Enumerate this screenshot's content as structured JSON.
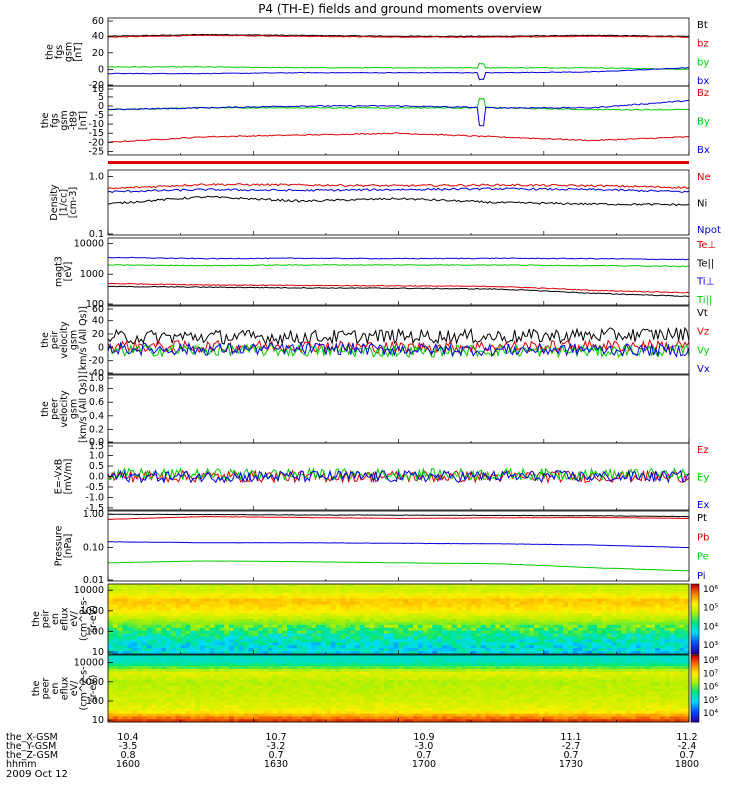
{
  "title": "P4 (TH-E) fields and ground moments overview",
  "colors": {
    "black": "#000000",
    "red": "#e00000",
    "green": "#00cc00",
    "blue": "#0000dd"
  },
  "colorbar_ticks": [
    {
      "panel": 10,
      "ticks": [
        "10⁶",
        "10⁵",
        "10⁴",
        "10³"
      ]
    },
    {
      "panel": 11,
      "ticks": [
        "10⁸",
        "10⁷",
        "10⁶",
        "10⁵",
        "10⁴"
      ]
    }
  ],
  "chart_data": [
    {
      "type": "line",
      "panel": 0,
      "ylabel": [
        "the",
        "fgs",
        "gsm",
        "[nT]"
      ],
      "yticks": [
        "60",
        "40",
        "20",
        "0",
        "-20"
      ],
      "ylim": [
        -20,
        62
      ],
      "log": false,
      "series": [
        {
          "name": "Bt",
          "color": "black",
          "values": [
            40,
            42,
            41,
            40,
            40,
            41,
            40
          ]
        },
        {
          "name": "bz",
          "color": "red",
          "values": [
            39,
            41,
            40,
            39,
            39,
            40,
            39
          ]
        },
        {
          "name": "by",
          "color": "green",
          "values": [
            3,
            3,
            2,
            2,
            2,
            2,
            0
          ]
        },
        {
          "name": "bx",
          "color": "blue",
          "values": [
            -5,
            -5,
            -4,
            -4,
            -4,
            -3,
            2
          ]
        }
      ]
    },
    {
      "type": "line",
      "panel": 1,
      "ylabel": [
        "the",
        "fgs",
        "gsm",
        "-t89",
        "[nT]"
      ],
      "yticks": [
        "10",
        "5",
        "0",
        "-5",
        "-10",
        "-15",
        "-20",
        "-25"
      ],
      "ylim": [
        -27,
        11
      ],
      "log": false,
      "series": [
        {
          "name": "Bz",
          "color": "red",
          "values": [
            -20,
            -17,
            -16,
            -15,
            -17,
            -19,
            -17
          ]
        },
        {
          "name": "By",
          "color": "green",
          "values": [
            -2,
            -1,
            -1,
            -1,
            -1,
            -2,
            -2
          ]
        },
        {
          "name": "Bx",
          "color": "blue",
          "values": [
            -2,
            -1,
            0,
            0,
            -1,
            -1,
            3
          ]
        }
      ]
    },
    {
      "type": "line",
      "panel": 2,
      "ylabel": [],
      "yticks": [],
      "ylim": [
        0,
        1
      ],
      "log": false,
      "series": [
        {
          "name": "",
          "color": "red",
          "values": [
            0.5,
            0.5
          ]
        }
      ]
    },
    {
      "type": "line",
      "panel": 3,
      "ylabel": [
        "Density",
        "[1/cc]",
        "[cm-3]"
      ],
      "yticks": [
        "1.0",
        "0.1"
      ],
      "ylim": [
        0.1,
        1.3
      ],
      "log": true,
      "series": [
        {
          "name": "Ne",
          "color": "red",
          "values": [
            0.62,
            0.74,
            0.72,
            0.7,
            0.72,
            0.7,
            0.65
          ]
        },
        {
          "name": "Ni",
          "color": "black",
          "values": [
            0.34,
            0.45,
            0.38,
            0.42,
            0.36,
            0.34,
            0.33
          ]
        },
        {
          "name": "Npot",
          "color": "blue",
          "values": [
            0.55,
            0.6,
            0.58,
            0.6,
            0.62,
            0.6,
            0.55
          ]
        }
      ]
    },
    {
      "type": "line",
      "panel": 4,
      "ylabel": [
        "magt3",
        "[eV]"
      ],
      "yticks": [
        "10000",
        "1000",
        "100"
      ],
      "ylim": [
        100,
        15000
      ],
      "log": true,
      "series": [
        {
          "name": "Te⊥",
          "color": "red",
          "values": [
            500,
            450,
            430,
            420,
            400,
            300,
            250
          ]
        },
        {
          "name": "Te||",
          "color": "black",
          "values": [
            400,
            380,
            360,
            350,
            330,
            240,
            190
          ]
        },
        {
          "name": "Ti⊥",
          "color": "blue",
          "values": [
            3500,
            3200,
            3300,
            3200,
            3300,
            3200,
            3000
          ]
        },
        {
          "name": "Ti||",
          "color": "green",
          "values": [
            2000,
            1900,
            2000,
            2000,
            2000,
            1900,
            1800
          ]
        }
      ]
    },
    {
      "type": "line",
      "panel": 5,
      "ylabel": [
        "the",
        "peir",
        "velocity",
        "gsm",
        "[km/s (All Qs)]"
      ],
      "yticks": [
        "60",
        "40",
        "20",
        "0",
        "-20",
        "-40"
      ],
      "ylim": [
        -40,
        62
      ],
      "log": false,
      "series": [
        {
          "name": "Vt",
          "color": "black",
          "values": [
            15,
            16,
            15,
            17,
            16,
            18,
            20
          ]
        },
        {
          "name": "Vz",
          "color": "red",
          "values": [
            2,
            1,
            2,
            0,
            1,
            2,
            3
          ]
        },
        {
          "name": "Vy",
          "color": "green",
          "values": [
            -5,
            -4,
            -5,
            -6,
            -5,
            -6,
            -5
          ]
        },
        {
          "name": "Vx",
          "color": "blue",
          "values": [
            -2,
            -3,
            -2,
            -3,
            -4,
            -3,
            -5
          ]
        }
      ]
    },
    {
      "type": "line",
      "panel": 6,
      "ylabel": [
        "the",
        "peer",
        "velocity",
        "gsm",
        "[km/s (All Qs)]"
      ],
      "yticks": [
        "1.0",
        "0.8",
        "0.6",
        "0.4",
        "0.2",
        "0.0"
      ],
      "ylim": [
        0,
        1
      ],
      "log": false,
      "series": [
        {
          "name": "Vt",
          "color": "black",
          "values": []
        },
        {
          "name": "Vz",
          "color": "red",
          "values": []
        },
        {
          "name": "Vy",
          "color": "green",
          "values": []
        },
        {
          "name": "Vx",
          "color": "blue",
          "values": []
        }
      ]
    },
    {
      "type": "line",
      "panel": 7,
      "ylabel": [
        "E=-VxB",
        "[mV/m]"
      ],
      "yticks": [
        "1.5",
        "1.0",
        "0.5",
        "0.0",
        "-0.5",
        "-1.0",
        "-1.5"
      ],
      "ylim": [
        -1.6,
        1.6
      ],
      "log": false,
      "series": [
        {
          "name": "Ez",
          "color": "red",
          "values": [
            0,
            0,
            0,
            0,
            0,
            0,
            0
          ]
        },
        {
          "name": "Ey",
          "color": "green",
          "values": [
            0.1,
            0.1,
            0.1,
            0.1,
            0.1,
            0.1,
            0.1
          ]
        },
        {
          "name": "Ex",
          "color": "blue",
          "values": [
            0,
            0,
            0,
            0,
            0,
            0,
            0
          ]
        }
      ]
    },
    {
      "type": "line",
      "panel": 8,
      "ylabel": [
        "Pressure",
        "[nPa]"
      ],
      "yticks": [
        "1.00",
        "0.10",
        "0.01"
      ],
      "ylim": [
        0.01,
        1.25
      ],
      "log": true,
      "series": [
        {
          "name": "Pt",
          "color": "black",
          "values": [
            1.0,
            0.98,
            0.95,
            0.94,
            0.92,
            0.9,
            0.85
          ]
        },
        {
          "name": "Pb",
          "color": "red",
          "values": [
            0.7,
            0.85,
            0.8,
            0.75,
            0.78,
            0.8,
            0.75
          ]
        },
        {
          "name": "Pe",
          "color": "green",
          "values": [
            0.035,
            0.04,
            0.038,
            0.035,
            0.033,
            0.025,
            0.02
          ]
        },
        {
          "name": "Pi",
          "color": "blue",
          "values": [
            0.15,
            0.14,
            0.14,
            0.135,
            0.13,
            0.12,
            0.1
          ]
        }
      ]
    },
    {
      "type": "heatmap",
      "panel": 9,
      "ylabel": [
        "the",
        "peir",
        "en",
        "eflux",
        "eV/",
        "(cm^2-s-",
        "sr-eV)"
      ],
      "yticks": [
        "10000",
        "1000",
        "100",
        "10"
      ],
      "ylim": [
        8,
        20000
      ],
      "log": true,
      "colorbar_range": [
        100,
        10000000
      ],
      "energy_eV": [
        10,
        30,
        100,
        300,
        1000,
        3000,
        10000
      ],
      "eflux": [
        4000,
        6000,
        20000,
        80000,
        400000,
        800000,
        150000
      ]
    },
    {
      "type": "heatmap",
      "panel": 10,
      "ylabel": [
        "the",
        "peer",
        "en",
        "eflux",
        "eV/",
        "(cm^2-s-",
        "sr-eV)"
      ],
      "yticks": [
        "10000",
        "1000",
        "100",
        "10"
      ],
      "ylim": [
        8,
        25000
      ],
      "log": true,
      "colorbar_range": [
        5000,
        100000000
      ],
      "energy_eV": [
        10,
        30,
        100,
        300,
        1000,
        3000,
        10000
      ],
      "eflux": [
        50000000,
        5000000,
        3000000,
        2500000,
        2000000,
        4000000,
        200000
      ]
    }
  ],
  "x_axis": [
    {
      "label": "the_X-GSM",
      "values": [
        "10.4",
        "10.7",
        "10.9",
        "11.1",
        "11.2"
      ]
    },
    {
      "label": "the_Y-GSM",
      "values": [
        "-3.5",
        "-3.2",
        "-3.0",
        "-2.7",
        "-2.4"
      ]
    },
    {
      "label": "the_Z-GSM",
      "values": [
        "0.8",
        "0.7",
        "0.7",
        "0.7",
        "0.7"
      ]
    },
    {
      "label": "hhmm",
      "values": [
        "1600",
        "1630",
        "1700",
        "1730",
        "1800"
      ]
    }
  ],
  "date": "2009 Oct 12"
}
